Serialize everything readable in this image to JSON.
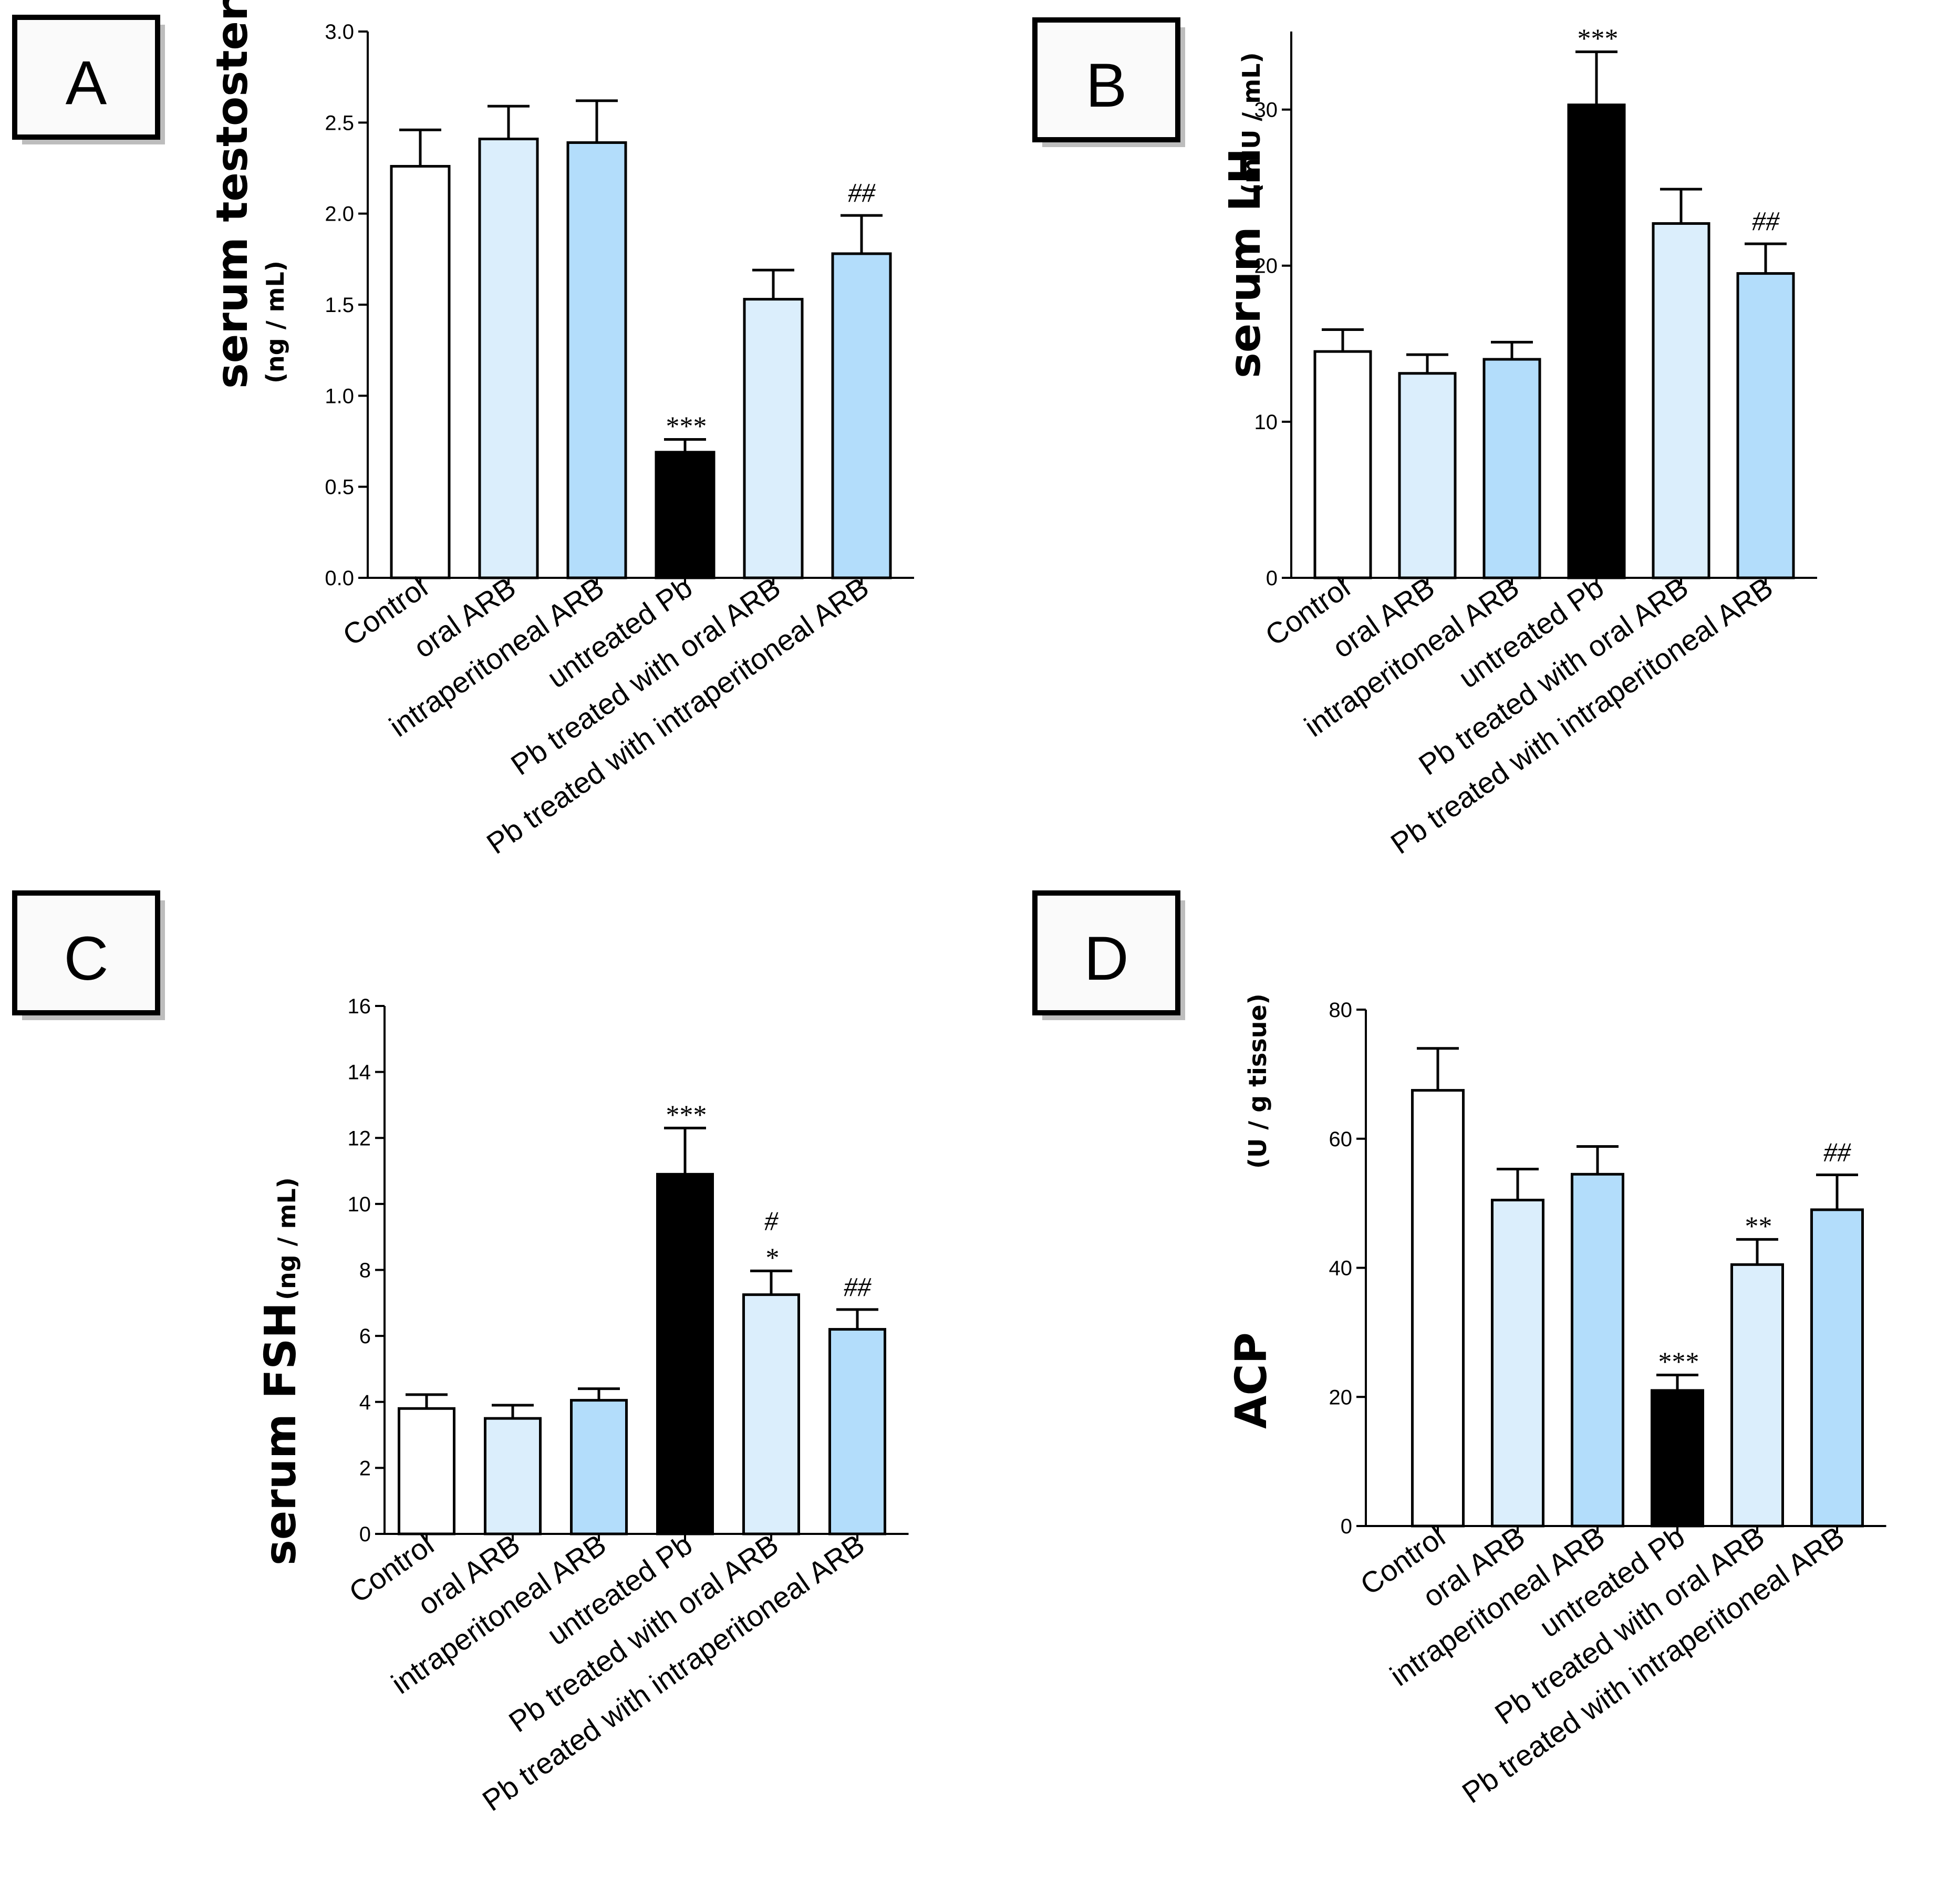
{
  "colors": {
    "white": "#ffffff",
    "light_blue": "#dbeefc",
    "medium_blue": "#b3ddfb",
    "black": "#000000"
  },
  "chart_data": [
    {
      "type": "bar",
      "panel": "A",
      "ylabel_main": "serum testosterone",
      "ylabel_unit": "(ng / mL)",
      "categories": [
        "Control",
        "oral ARB",
        "intraperitoneal ARB",
        "untreated Pb",
        "Pb treated with oral ARB",
        "Pb treated with intraperitoneal ARB"
      ],
      "values": [
        2.26,
        2.41,
        2.39,
        0.69,
        1.53,
        1.78
      ],
      "errors": [
        0.2,
        0.18,
        0.23,
        0.07,
        0.16,
        0.21
      ],
      "bar_colors": [
        "#ffffff",
        "#dbeefc",
        "#b3ddfb",
        "#000000",
        "#dbeefc",
        "#b3ddfb"
      ],
      "annotations": [
        "",
        "",
        "",
        "***",
        "",
        "##"
      ],
      "ylim": [
        0,
        3.0
      ],
      "yticks": [
        "0.0",
        "0.5",
        "1.0",
        "1.5",
        "2.0",
        "2.5",
        "3.0"
      ]
    },
    {
      "type": "bar",
      "panel": "B",
      "ylabel_main": "serum LH",
      "ylabel_unit": "(mIU / mL)",
      "categories": [
        "Control",
        "oral ARB",
        "intraperitoneal ARB",
        "untreated Pb",
        "Pb treated with oral ARB",
        "Pb treated with intraperitoneal ARB"
      ],
      "values": [
        14.5,
        13.1,
        14.0,
        30.3,
        22.7,
        19.5
      ],
      "errors": [
        1.4,
        1.2,
        1.1,
        3.4,
        2.2,
        1.9
      ],
      "bar_colors": [
        "#ffffff",
        "#dbeefc",
        "#b3ddfb",
        "#000000",
        "#dbeefc",
        "#b3ddfb"
      ],
      "annotations": [
        "",
        "",
        "",
        "***",
        "",
        "##"
      ],
      "ylim": [
        0,
        35
      ],
      "yticks": [
        "0",
        "10",
        "20",
        "30"
      ]
    },
    {
      "type": "bar",
      "panel": "C",
      "ylabel_main": "serum FSH",
      "ylabel_unit": "(ng / mL)",
      "categories": [
        "Control",
        "oral ARB",
        "intraperitoneal ARB",
        "untreated Pb",
        "Pb treated with oral ARB",
        "Pb treated with intraperitoneal ARB"
      ],
      "values": [
        3.8,
        3.5,
        4.05,
        10.9,
        7.25,
        6.2
      ],
      "errors": [
        0.42,
        0.4,
        0.35,
        1.4,
        0.72,
        0.6
      ],
      "bar_colors": [
        "#ffffff",
        "#dbeefc",
        "#b3ddfb",
        "#000000",
        "#dbeefc",
        "#b3ddfb"
      ],
      "annotations": [
        "",
        "",
        "",
        "***",
        "#\n*",
        "##"
      ],
      "ylim": [
        0,
        16
      ],
      "yticks": [
        "0",
        "2",
        "4",
        "6",
        "8",
        "10",
        "12",
        "14",
        "16"
      ]
    },
    {
      "type": "bar",
      "panel": "D",
      "ylabel_main": "ACP",
      "ylabel_unit": "(U / g tissue)",
      "categories": [
        "Control",
        "oral ARB",
        "intraperitoneal ARB",
        "untreated Pb",
        "Pb treated with oral ARB",
        "Pb treated with intraperitoneal ARB"
      ],
      "values": [
        67.5,
        50.5,
        54.5,
        21.0,
        40.5,
        49.0
      ],
      "errors": [
        6.5,
        4.8,
        4.3,
        2.4,
        3.9,
        5.4
      ],
      "bar_colors": [
        "#ffffff",
        "#dbeefc",
        "#b3ddfb",
        "#000000",
        "#dbeefc",
        "#b3ddfb"
      ],
      "annotations": [
        "",
        "",
        "",
        "***",
        "**",
        "##"
      ],
      "ylim": [
        0,
        80
      ],
      "yticks": [
        "0",
        "20",
        "40",
        "60",
        "80"
      ]
    }
  ]
}
